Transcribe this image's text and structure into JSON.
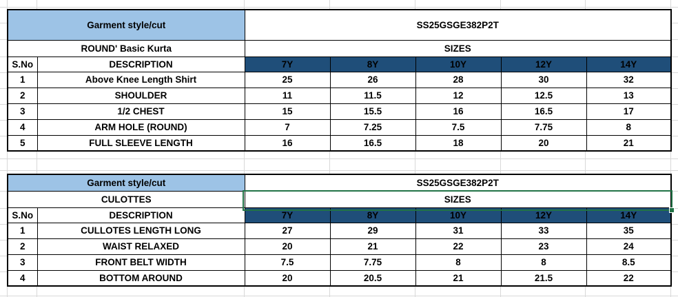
{
  "colors": {
    "style_cut_fill": "#9DC3E6",
    "size_header_fill": "#1F4E79",
    "size_header_text": "#FFFFFF",
    "selection_green": "#217346",
    "gridline": "#D8D8D8",
    "border": "#000000"
  },
  "tables": [
    {
      "style_cut_label": "Garment style/cut",
      "style_code": "SS25GSGE382P2T",
      "garment_name": "ROUND' Basic Kurta",
      "sizes_label": "SIZES",
      "sno_header": "S.No",
      "description_header": "DESCRIPTION",
      "size_headers": [
        "7Y",
        "8Y",
        "10Y",
        "12Y",
        "14Y"
      ],
      "rows": [
        {
          "sno": "1",
          "description": "Above Knee Length Shirt",
          "values": [
            "25",
            "26",
            "28",
            "30",
            "32"
          ]
        },
        {
          "sno": "2",
          "description": "SHOULDER",
          "values": [
            "11",
            "11.5",
            "12",
            "12.5",
            "13"
          ]
        },
        {
          "sno": "3",
          "description": "1/2 CHEST",
          "values": [
            "15",
            "15.5",
            "16",
            "16.5",
            "17"
          ]
        },
        {
          "sno": "4",
          "description": "ARM HOLE (ROUND)",
          "values": [
            "7",
            "7.25",
            "7.5",
            "7.75",
            "8"
          ]
        },
        {
          "sno": "5",
          "description": "FULL SLEEVE LENGTH",
          "values": [
            "16",
            "16.5",
            "18",
            "20",
            "21"
          ]
        }
      ]
    },
    {
      "style_cut_label": "Garment style/cut",
      "style_code": "SS25GSGE382P2T",
      "garment_name": "CULOTTES",
      "sizes_label": "SIZES",
      "sno_header": "S.No",
      "description_header": "DESCRIPTION",
      "size_headers": [
        "7Y",
        "8Y",
        "10Y",
        "12Y",
        "14Y"
      ],
      "rows": [
        {
          "sno": "1",
          "description": "CULLOTES LENGTH LONG",
          "values": [
            "27",
            "29",
            "31",
            "33",
            "35"
          ]
        },
        {
          "sno": "2",
          "description": "WAIST RELAXED",
          "values": [
            "20",
            "21",
            "22",
            "23",
            "24"
          ]
        },
        {
          "sno": "3",
          "description": "FRONT BELT WIDTH",
          "values": [
            "7.5",
            "7.75",
            "8",
            "8",
            "8.5"
          ]
        },
        {
          "sno": "4",
          "description": "BOTTOM AROUND",
          "values": [
            "20",
            "20.5",
            "21",
            "21.5",
            "22"
          ]
        }
      ]
    }
  ]
}
